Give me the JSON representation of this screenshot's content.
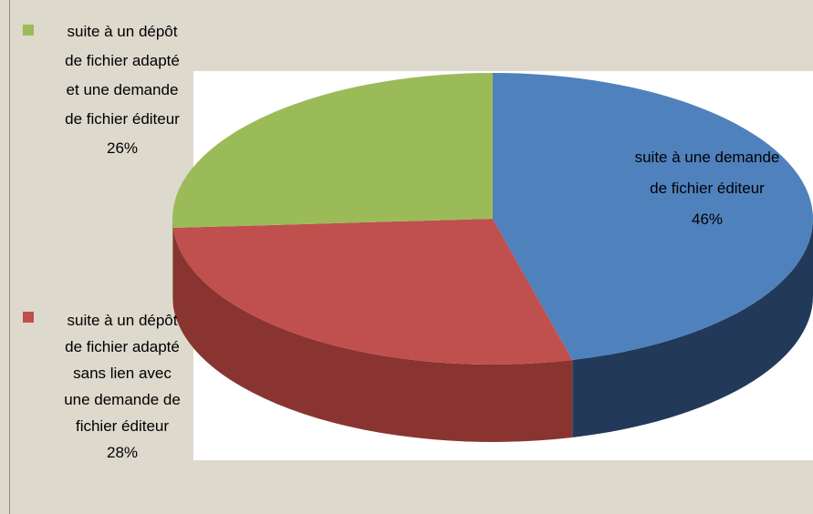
{
  "chart_data": {
    "type": "pie",
    "categories": [
      "suite à une demande de fichier éditeur",
      "suite à un dépôt de fichier adapté sans lien avec une demande de fichier éditeur",
      "suite à un dépôt de fichier adapté et une demande de fichier éditeur"
    ],
    "values": [
      46,
      28,
      26
    ],
    "value_labels": [
      "46%",
      "28%",
      "26%"
    ],
    "colors": [
      "#4f81bd",
      "#c0504d",
      "#9bbb59"
    ],
    "side_colors": [
      "#22395a",
      "#8a3432",
      "#6e8a3c"
    ]
  }
}
